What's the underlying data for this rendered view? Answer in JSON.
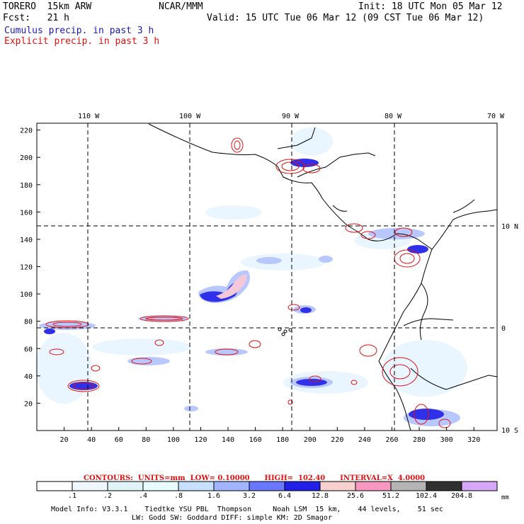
{
  "header": {
    "model": "TORERO  15km ARW",
    "org": "NCAR/MMM",
    "init": "Init: 18 UTC Mon 05 Mar 12",
    "fcst": "Fcst:   21 h",
    "valid": "Valid: 15 UTC Tue 06 Mar 12 (09 CST Tue 06 Mar 12)",
    "line_blue": "Cumulus precip. in past 3 h",
    "line_red": "Explicit precip. in past 3 h"
  },
  "map": {
    "lon_labels": [
      "110 W",
      "100 W",
      "90 W",
      "80 W",
      "70 W"
    ],
    "lat_labels": [
      "10 N",
      "0",
      "10 S"
    ],
    "x_ticks": [
      "20",
      "40",
      "60",
      "80",
      "100",
      "120",
      "140",
      "160",
      "180",
      "200",
      "220",
      "240",
      "260",
      "280",
      "300",
      "320"
    ],
    "y_ticks": [
      "220",
      "200",
      "180",
      "160",
      "140",
      "120",
      "100",
      "80",
      "60",
      "40",
      "20"
    ]
  },
  "contours_line": {
    "label": "CONTOURS:  UNITS=mm  LOW= 0.10000      HIGH=  102.40      INTERVAL=X  4.0000"
  },
  "colorbar": {
    "labels": [
      ".1",
      ".2",
      ".4",
      ".8",
      "1.6",
      "3.2",
      "6.4",
      "12.8",
      "25.6",
      "51.2",
      "102.4",
      "204.8"
    ],
    "colors": [
      "#ffffff",
      "#eef7ff",
      "#e0f4f8",
      "#e8fbff",
      "#c8e0ff",
      "#a0b4ff",
      "#6a78ff",
      "#2020e8",
      "#f8d0d0",
      "#f898c0",
      "#b4b4b4",
      "#303030",
      "#d8a8f8"
    ],
    "units": "mm"
  },
  "footer": {
    "line1": "Model Info: V3.3.1    Tiedtke YSU PBL  Thompson     Noah LSM  15 km,    44 levels,    51 sec",
    "line2": "LW: Godd SW: Goddard DIFF: simple KM: 2D Smagor"
  }
}
